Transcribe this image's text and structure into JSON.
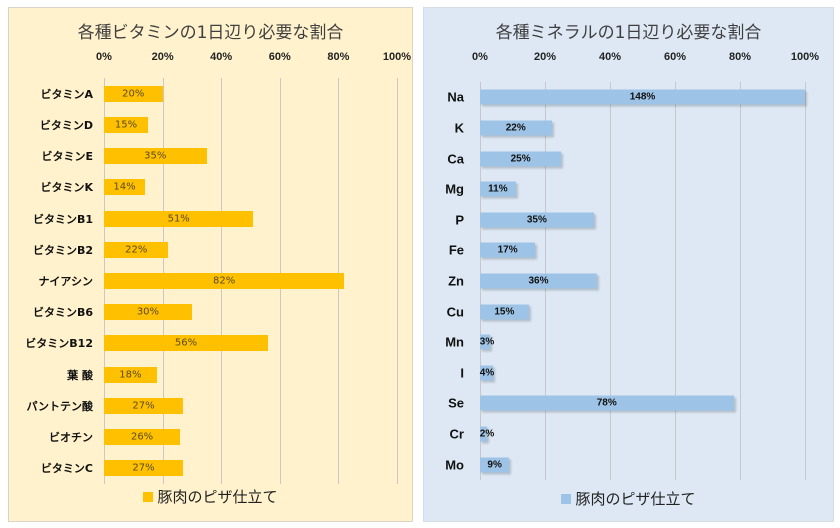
{
  "chart_data": [
    {
      "type": "bar",
      "orientation": "horizontal",
      "title": "各種ビタミンの1日辺り必要な割合",
      "categories": [
        "ビタミンA",
        "ビタミンD",
        "ビタミンE",
        "ビタミンK",
        "ビタミンB1",
        "ビタミンB2",
        "ナイアシン",
        "ビタミンB6",
        "ビタミンB12",
        "葉 酸",
        "パントテン酸",
        "ビオチン",
        "ビタミンC"
      ],
      "series": [
        {
          "name": "豚肉のピザ仕立て",
          "color": "#ffc000",
          "values": [
            20,
            15,
            35,
            14,
            51,
            22,
            82,
            30,
            56,
            18,
            27,
            26,
            27
          ]
        }
      ],
      "data_labels": [
        "20%",
        "15%",
        "35%",
        "14%",
        "51%",
        "22%",
        "82%",
        "30%",
        "56%",
        "18%",
        "27%",
        "26%",
        "27%"
      ],
      "xlim": [
        0,
        100
      ],
      "x_ticks": [
        "0%",
        "20%",
        "40%",
        "60%",
        "80%",
        "100%"
      ],
      "x_tick_values": [
        0,
        20,
        40,
        60,
        80,
        100
      ],
      "x_axis_position": "top",
      "grid": true,
      "legend": {
        "entries": [
          "豚肉のピザ仕立て"
        ],
        "position": "bottom"
      },
      "background": "#fff2cc"
    },
    {
      "type": "bar",
      "orientation": "horizontal",
      "title": "各種ミネラルの1日辺り必要な割合",
      "categories": [
        "Na",
        "K",
        "Ca",
        "Mg",
        "P",
        "Fe",
        "Zn",
        "Cu",
        "Mn",
        "I",
        "Se",
        "Cr",
        "Mo"
      ],
      "series": [
        {
          "name": "豚肉のピザ仕立て",
          "color": "#9dc3e6",
          "values": [
            148,
            22,
            25,
            11,
            35,
            17,
            36,
            15,
            3,
            4,
            78,
            2,
            9
          ]
        }
      ],
      "data_labels": [
        "148%",
        "22%",
        "25%",
        "11%",
        "35%",
        "17%",
        "36%",
        "15%",
        "3%",
        "4%",
        "78%",
        "2%",
        "9%"
      ],
      "xlim": [
        0,
        100
      ],
      "x_ticks": [
        "0%",
        "20%",
        "40%",
        "60%",
        "80%",
        "100%"
      ],
      "x_tick_values": [
        0,
        20,
        40,
        60,
        80,
        100
      ],
      "x_axis_position": "top",
      "grid": true,
      "legend": {
        "entries": [
          "豚肉のピザ仕立て"
        ],
        "position": "bottom"
      },
      "background": "#dde8f4"
    }
  ]
}
